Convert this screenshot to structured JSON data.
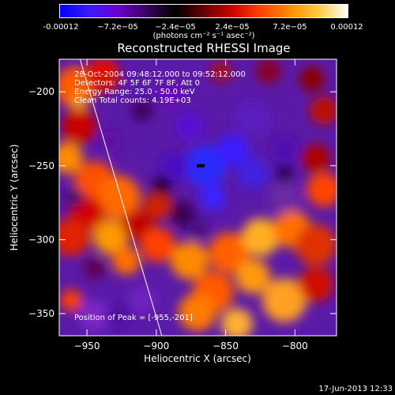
{
  "colorbar": {
    "ticks": [
      "-0.00012",
      "−7.2e−05",
      "−2.4e−05",
      "2.4e−05",
      "7.2e−05",
      "0.00012"
    ],
    "units": "(photons cm⁻² s⁻¹ asec⁻²)",
    "stops": [
      "#0000ff",
      "#3a1aff",
      "#6a00d0",
      "#3b0060",
      "#000000",
      "#6a0000",
      "#d00000",
      "#ff4500",
      "#ff8c00",
      "#ffcc40",
      "#ffffff"
    ]
  },
  "info": {
    "line1": "28-Oct-2004 09:48:12.000 to 09:52:12.000",
    "line2": "Detectors: 4F 5F 6F 7F 8F, Att 0",
    "line3": "Energy Range: 25.0 - 50.0 keV",
    "line4": "Clean    Total counts: 4.19E+03"
  },
  "peak_label": "Position of Peak = [-955,-201]",
  "footer": "17-Jun-2013 12:33",
  "chart_data": {
    "type": "heatmap",
    "title": "Reconstructed RHESSI Image",
    "xlabel": "Heliocentric X (arcsec)",
    "ylabel": "Heliocentric Y (arcsec)",
    "xlim": [
      -970,
      -770
    ],
    "ylim": [
      -365,
      -178
    ],
    "xticks": [
      -950,
      -900,
      -850,
      -800
    ],
    "yticks": [
      -200,
      -250,
      -300,
      -350
    ],
    "xtick_labels": [
      "−950",
      "−900",
      "−850",
      "−800"
    ],
    "ytick_labels": [
      "−200",
      "−250",
      "−300",
      "−350"
    ],
    "colorbar_range": [
      -0.00012,
      0.00012
    ],
    "limb_line": [
      [
        -955,
        -178
      ],
      [
        -896,
        -365
      ]
    ],
    "peak": [
      -955,
      -201
    ],
    "marker": [
      -868,
      -250
    ]
  }
}
